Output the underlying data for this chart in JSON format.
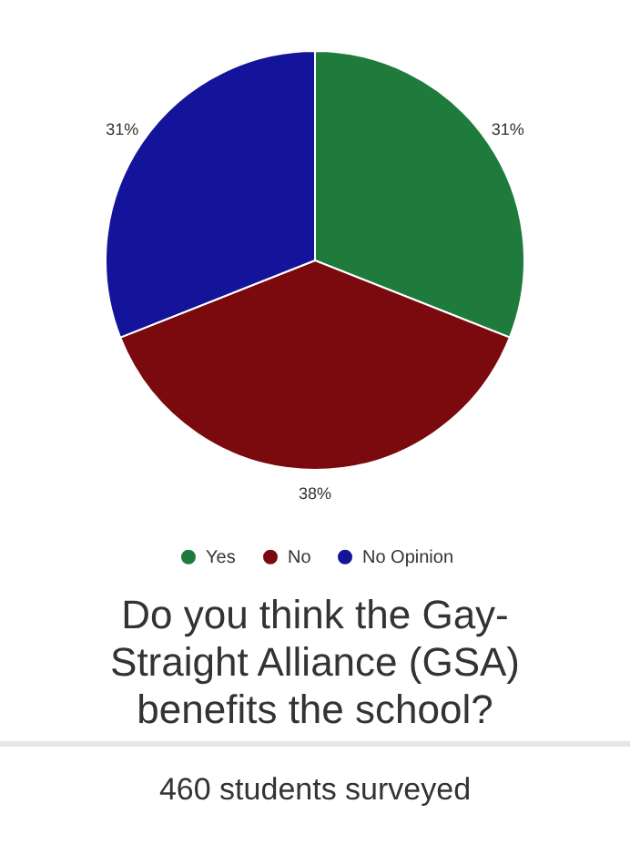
{
  "chart_data": {
    "type": "pie",
    "title": "Do you think the Gay-Straight Alliance (GSA) benefits the school?",
    "annotations": [
      "460 students surveyed"
    ],
    "categories": [
      "Yes",
      "No",
      "No Opinion"
    ],
    "values": [
      31,
      38,
      31
    ],
    "colors": [
      "#1e7b3c",
      "#7b0a0e",
      "#14149b"
    ],
    "legend": "bottom",
    "value_labels": [
      "31%",
      "38%",
      "31%"
    ]
  }
}
